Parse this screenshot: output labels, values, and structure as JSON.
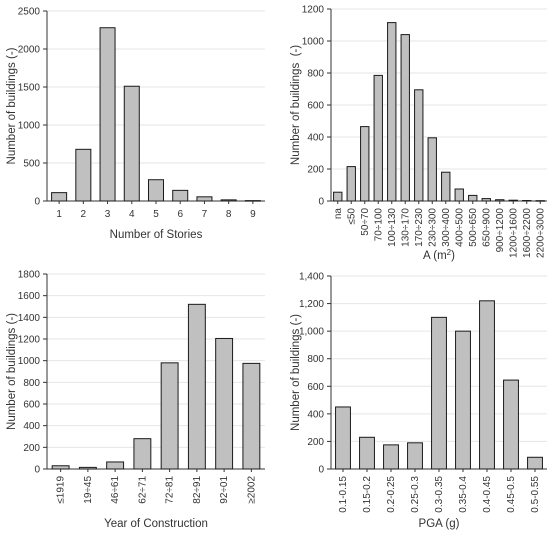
{
  "style": {
    "bar_fill": "#c0c0c0",
    "bar_stroke": "#1a1a1a",
    "grid_color": "#e6e6e6",
    "axis_color": "#333333"
  },
  "chart_data": [
    {
      "type": "bar",
      "title": "",
      "xlabel": "Number of Stories",
      "ylabel": "Number of buildings (-)",
      "categories": [
        "1",
        "2",
        "3",
        "4",
        "5",
        "6",
        "7",
        "8",
        "9"
      ],
      "values": [
        110,
        680,
        2280,
        1510,
        280,
        140,
        55,
        15,
        5
      ],
      "ylim": [
        0,
        2500
      ],
      "yticks": [
        "0",
        "500",
        "1000",
        "1500",
        "2000",
        "2500"
      ],
      "grid": true,
      "rotate_xticks": false
    },
    {
      "type": "bar",
      "title": "",
      "xlabel": "A (m",
      "xlabel_sup": "2",
      "xlabel_suffix": ")",
      "ylabel": "Number of buildings  (-)",
      "categories": [
        "na",
        "≤50",
        "50÷70",
        "70÷100",
        "100÷130",
        "130÷170",
        "170÷230",
        "230÷300",
        "300÷400",
        "400÷500",
        "500÷650",
        "650÷900",
        "900÷1200",
        "1200÷1600",
        "1600÷2200",
        "2200÷3000"
      ],
      "values": [
        55,
        215,
        465,
        785,
        1115,
        1040,
        695,
        395,
        180,
        75,
        35,
        15,
        8,
        5,
        3,
        2
      ],
      "ylim": [
        0,
        1200
      ],
      "yticks": [
        "0",
        "200",
        "400",
        "600",
        "800",
        "1000",
        "1200"
      ],
      "grid": true,
      "rotate_xticks": true
    },
    {
      "type": "bar",
      "title": "",
      "xlabel": "Year of Construction",
      "ylabel": "Number of buildings (-)",
      "categories": [
        "≤1919",
        "19÷45",
        "46÷61",
        "62÷71",
        "72÷81",
        "82÷91",
        "92÷01",
        "≥2002"
      ],
      "values": [
        30,
        15,
        65,
        280,
        980,
        1520,
        1205,
        975
      ],
      "ylim": [
        0,
        1800
      ],
      "yticks": [
        "0",
        "200",
        "400",
        "600",
        "800",
        "1000",
        "1200",
        "1400",
        "1600",
        "1800"
      ],
      "grid": true,
      "rotate_xticks": true
    },
    {
      "type": "bar",
      "title": "",
      "xlabel": "PGA (g)",
      "ylabel": "Number of buildings (-)",
      "categories": [
        "0.1-0.15",
        "0.15-0.2",
        "0.2-0.25",
        "0.25-0.3",
        "0.3-0.35",
        "0.35-0.4",
        "0.4-0.45",
        "0.45-0.5",
        "0.5-0.55"
      ],
      "values": [
        450,
        230,
        175,
        190,
        1100,
        1000,
        1220,
        645,
        85
      ],
      "ylim": [
        0,
        1400
      ],
      "yticks": [
        "0",
        "200",
        "400",
        "600",
        "800",
        "1,000",
        "1,200",
        "1,400"
      ],
      "grid": true,
      "rotate_xticks": true
    }
  ]
}
